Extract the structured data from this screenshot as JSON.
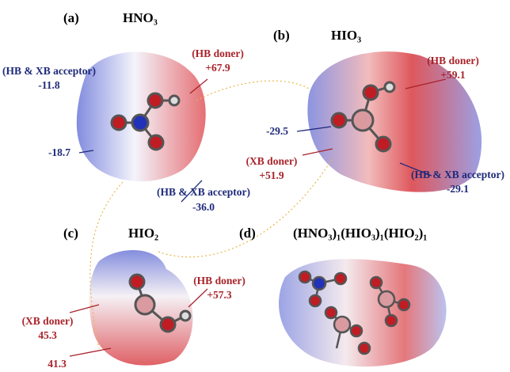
{
  "panels": [
    {
      "label": "(a)",
      "title": "HNO₃",
      "annotations": [
        "(HB doner)",
        "+67.9",
        "(HB & XB acceptor)",
        "-11.8",
        "-18.7",
        "(HB & XB acceptor)",
        "-36.0"
      ]
    },
    {
      "label": "(b)",
      "title": "HIO₃",
      "annotations": [
        "(HB doner)",
        "+59.1",
        "-29.5",
        "(XB doner)",
        "+51.9",
        "(HB & XB acceptor)",
        "-29.1"
      ]
    },
    {
      "label": "(c)",
      "title": "HIO₂",
      "annotations": [
        "(HB doner)",
        "+57.3",
        "(XB doner)",
        "45.3",
        "41.3"
      ]
    },
    {
      "label": "(d)",
      "title": "(HNO₃)₁(HIO₃)₁(HIO₂)₁",
      "annotations": []
    }
  ]
}
